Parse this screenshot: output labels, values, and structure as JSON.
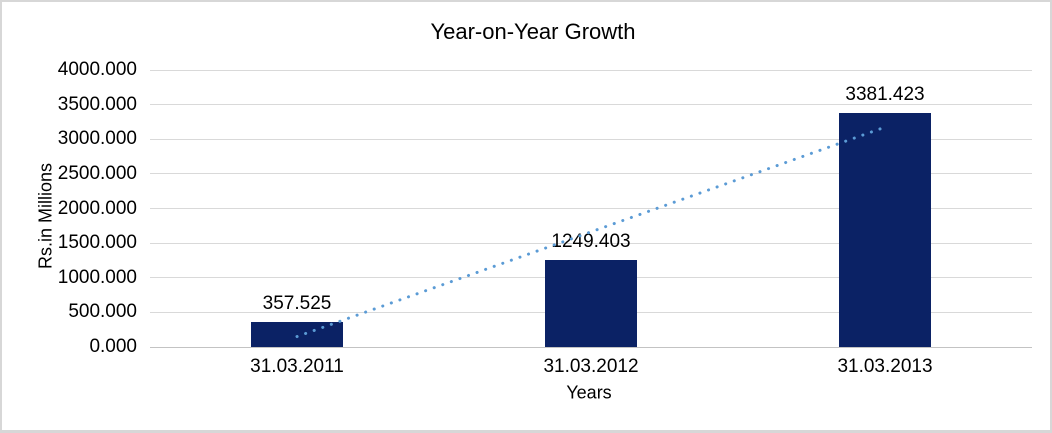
{
  "chart_data": {
    "type": "bar",
    "title": "Year-on-Year Growth",
    "xlabel": "Years",
    "ylabel": "Rs.in Millions",
    "categories": [
      "31.03.2011",
      "31.03.2012",
      "31.03.2013"
    ],
    "values": [
      357.525,
      1249.403,
      3381.423
    ],
    "data_labels": [
      "357.525",
      "1249.403",
      "3381.423"
    ],
    "ylim": [
      0,
      4000
    ],
    "ytick_step": 500,
    "ytick_labels": [
      "0.000",
      "500.000",
      "1000.000",
      "1500.000",
      "2000.000",
      "2500.000",
      "3000.000",
      "3500.000",
      "4000.000"
    ],
    "grid": true,
    "legend": false,
    "bar_color": "#0b2265",
    "gridline_color": "#d9d9d9",
    "axis_line_color": "#c3c3c3",
    "trendline": {
      "type": "linear",
      "style": "dotted",
      "color": "#5b9bd5"
    }
  }
}
